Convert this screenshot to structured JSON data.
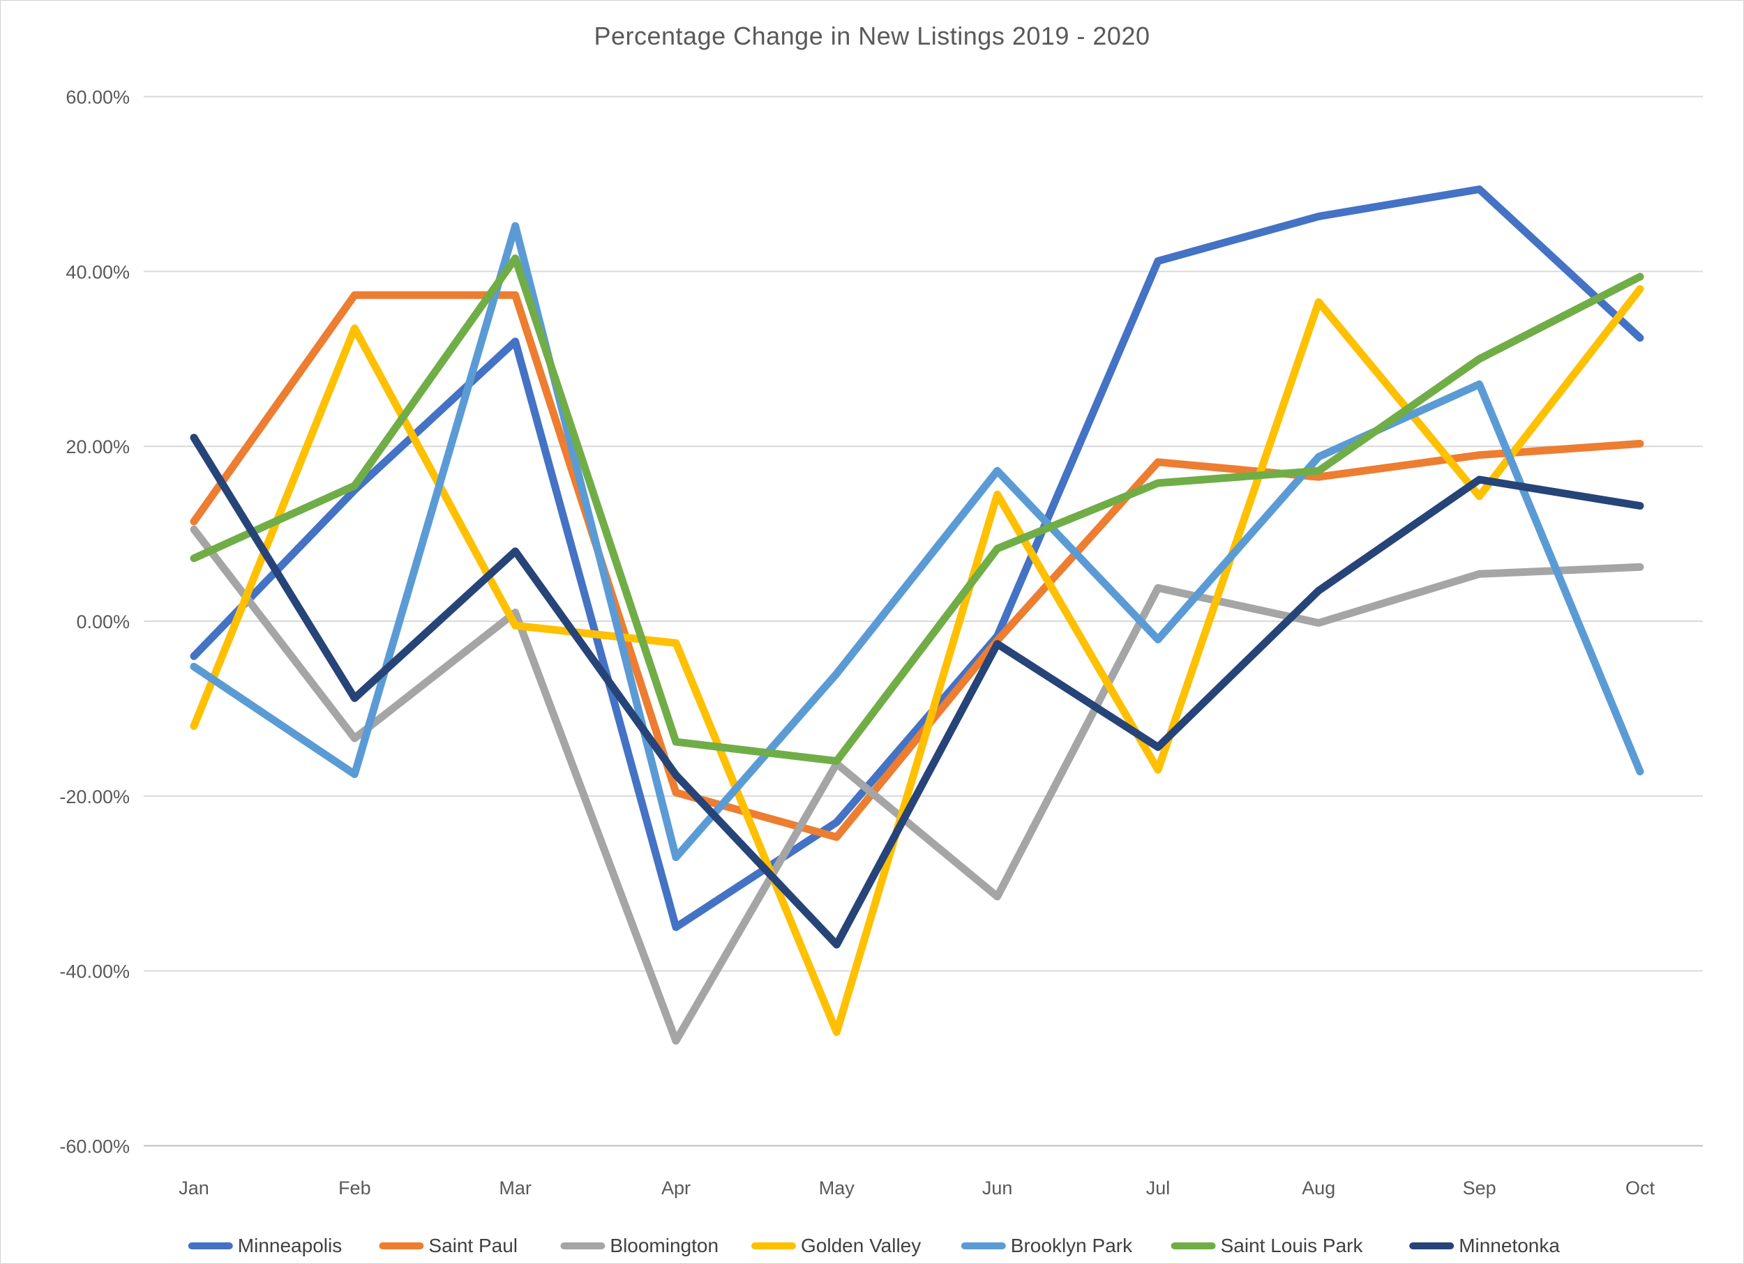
{
  "page": {
    "background": "#FFFFFF",
    "border_color": "#CFCFCF",
    "gridline_color": "#D9D9D9",
    "axis_line_color": "#BFBFBF",
    "axis_text_color": "#595959",
    "legend_text_color": "#404040"
  },
  "chart_data": {
    "type": "line",
    "title": "Percentage Change in New Listings 2019 - 2020",
    "xlabel": "",
    "ylabel": "",
    "categories": [
      "Jan",
      "Feb",
      "Mar",
      "Apr",
      "May",
      "Jun",
      "Jul",
      "Aug",
      "Sep",
      "Oct"
    ],
    "y_axis": {
      "min": -60,
      "max": 60,
      "step": 20,
      "tick_labels": [
        "60.00%",
        "40.00%",
        "20.00%",
        "0.00%",
        "-20.00%",
        "-40.00%",
        "-60.00%"
      ]
    },
    "grid": true,
    "legend_position": "bottom",
    "series": [
      {
        "name": "Minneapolis",
        "color": "#4472C4",
        "values": [
          -4.0,
          15.0,
          32.0,
          -35.0,
          -23.0,
          -1.7,
          41.2,
          46.3,
          49.4,
          32.4
        ]
      },
      {
        "name": "Saint Paul",
        "color": "#ED7D31",
        "values": [
          11.4,
          37.3,
          37.3,
          -19.6,
          -24.7,
          -2.2,
          18.2,
          16.5,
          19.0,
          20.3
        ]
      },
      {
        "name": "Bloomington",
        "color": "#A5A5A5",
        "values": [
          10.5,
          -13.4,
          1.0,
          -48.0,
          -16.3,
          -31.5,
          3.8,
          -0.2,
          5.4,
          6.2
        ]
      },
      {
        "name": "Golden Valley",
        "color": "#FFC000",
        "values": [
          -12.0,
          33.5,
          -0.5,
          -2.5,
          -47.0,
          14.5,
          -17.0,
          36.5,
          14.3,
          38.0
        ]
      },
      {
        "name": "Brooklyn Park",
        "color": "#5B9BD5",
        "values": [
          -5.2,
          -17.5,
          45.2,
          -27.0,
          -6.0,
          17.2,
          -2.1,
          18.8,
          27.1,
          -17.2
        ]
      },
      {
        "name": "Saint Louis Park",
        "color": "#70AD47",
        "values": [
          7.2,
          15.5,
          41.5,
          -13.8,
          -16.0,
          8.3,
          15.8,
          17.2,
          30.0,
          39.4
        ]
      },
      {
        "name": "Minnetonka",
        "color": "#264478",
        "values": [
          21.0,
          -8.8,
          8.0,
          -17.6,
          -37.0,
          -2.6,
          -14.4,
          3.5,
          16.2,
          13.2
        ]
      }
    ]
  }
}
